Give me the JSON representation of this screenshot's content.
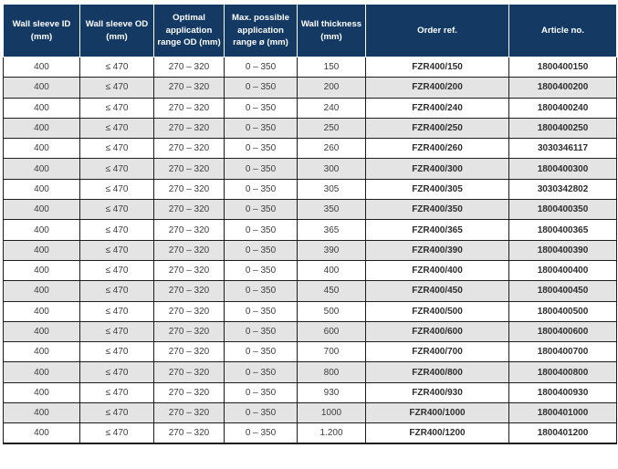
{
  "colors": {
    "header_bg": "#143a64",
    "header_text": "#ffffff",
    "row_bg": "#ffffff",
    "row_alt_bg": "#e4e4e4",
    "border": "#1c1c1c",
    "cell_text": "#3d3d3d"
  },
  "table": {
    "headers": [
      "Wall sleeve ID (mm)",
      "Wall sleeve OD (mm)",
      "Optimal application range OD (mm)",
      "Max. possible application range ø (mm)",
      "Wall thickness (mm)",
      "Order ref.",
      "Article no."
    ],
    "rows": [
      [
        "400",
        "≤ 470",
        "270 – 320",
        "0 – 350",
        "150",
        "FZR400/150",
        "1800400150"
      ],
      [
        "400",
        "≤ 470",
        "270 – 320",
        "0 – 350",
        "200",
        "FZR400/200",
        "1800400200"
      ],
      [
        "400",
        "≤ 470",
        "270 – 320",
        "0 – 350",
        "240",
        "FZR400/240",
        "1800400240"
      ],
      [
        "400",
        "≤ 470",
        "270 – 320",
        "0 – 350",
        "250",
        "FZR400/250",
        "1800400250"
      ],
      [
        "400",
        "≤ 470",
        "270 – 320",
        "0 – 350",
        "260",
        "FZR400/260",
        "3030346117"
      ],
      [
        "400",
        "≤ 470",
        "270 – 320",
        "0 – 350",
        "300",
        "FZR400/300",
        "1800400300"
      ],
      [
        "400",
        "≤ 470",
        "270 – 320",
        "0 – 350",
        "305",
        "FZR400/305",
        "3030342802"
      ],
      [
        "400",
        "≤ 470",
        "270 – 320",
        "0 – 350",
        "350",
        "FZR400/350",
        "1800400350"
      ],
      [
        "400",
        "≤ 470",
        "270 – 320",
        "0 – 350",
        "365",
        "FZR400/365",
        "1800400365"
      ],
      [
        "400",
        "≤ 470",
        "270 – 320",
        "0 – 350",
        "390",
        "FZR400/390",
        "1800400390"
      ],
      [
        "400",
        "≤ 470",
        "270 – 320",
        "0 – 350",
        "400",
        "FZR400/400",
        "1800400400"
      ],
      [
        "400",
        "≤ 470",
        "270 – 320",
        "0 – 350",
        "450",
        "FZR400/450",
        "1800400450"
      ],
      [
        "400",
        "≤ 470",
        "270 – 320",
        "0 – 350",
        "500",
        "FZR400/500",
        "1800400500"
      ],
      [
        "400",
        "≤ 470",
        "270 – 320",
        "0 – 350",
        "600",
        "FZR400/600",
        "1800400600"
      ],
      [
        "400",
        "≤ 470",
        "270 – 320",
        "0 – 350",
        "700",
        "FZR400/700",
        "1800400700"
      ],
      [
        "400",
        "≤ 470",
        "270 – 320",
        "0 – 350",
        "800",
        "FZR400/800",
        "1800400800"
      ],
      [
        "400",
        "≤ 470",
        "270 – 320",
        "0 – 350",
        "930",
        "FZR400/930",
        "1800400930"
      ],
      [
        "400",
        "≤ 470",
        "270 – 320",
        "0 – 350",
        "1000",
        "FZR400/1000",
        "1800401000"
      ],
      [
        "400",
        "≤ 470",
        "270 – 320",
        "0 – 350",
        "1.200",
        "FZR400/1200",
        "1800401200"
      ]
    ]
  }
}
